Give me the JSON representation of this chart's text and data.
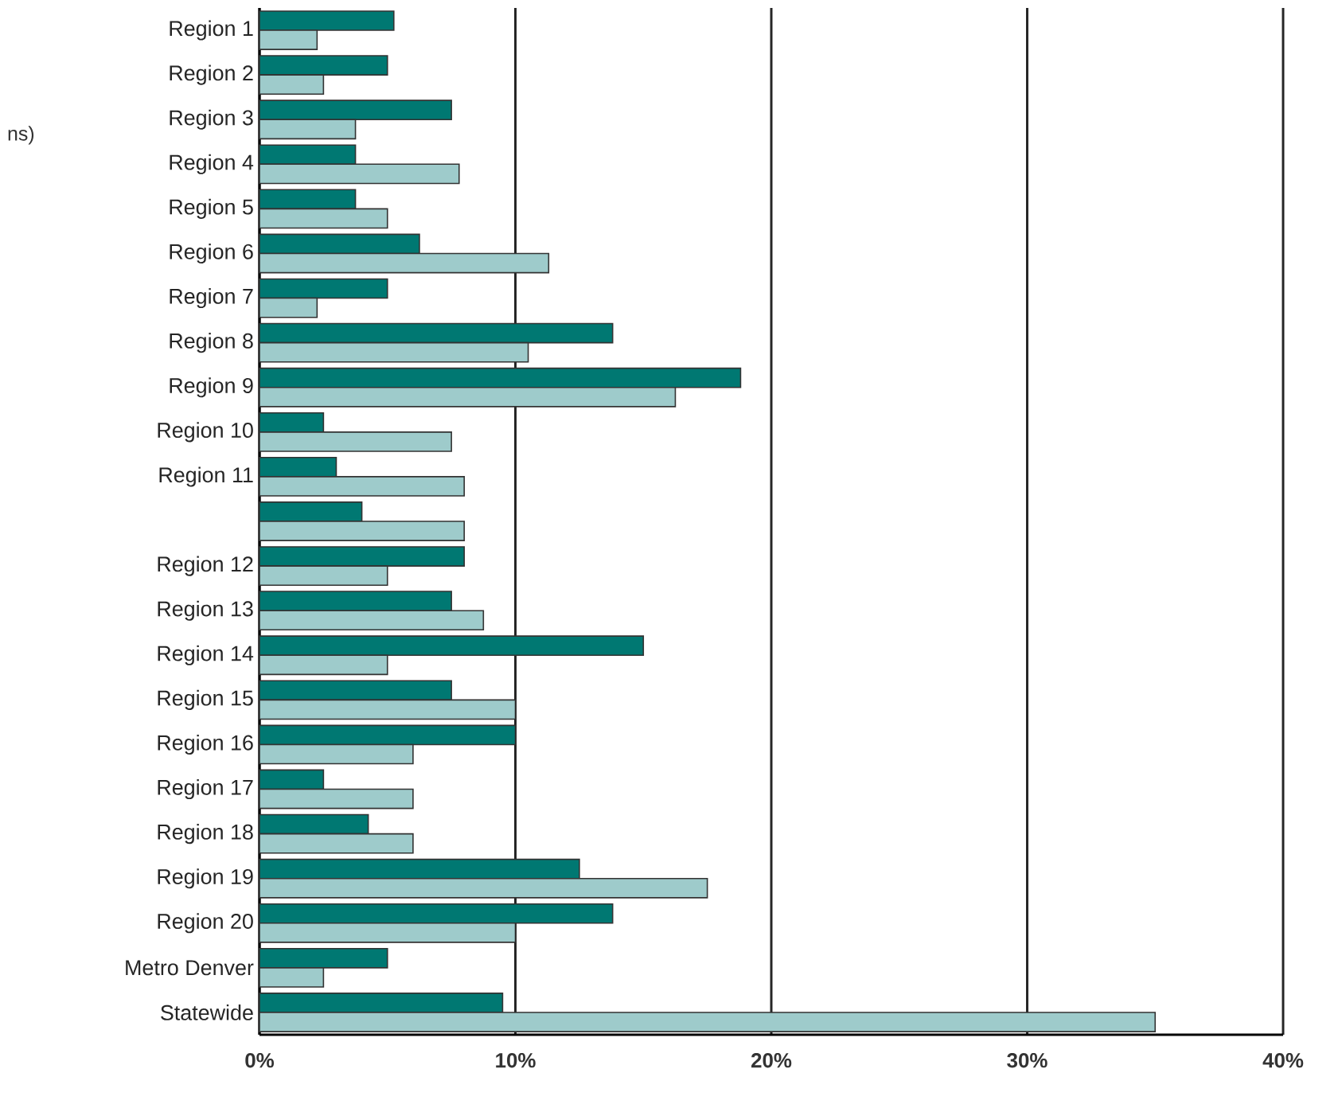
{
  "chart_data": {
    "type": "bar",
    "orientation": "horizontal",
    "categories": [
      "Region 1",
      "Region 2",
      "Region 3",
      "Region 4",
      "Region 5",
      "Region 6",
      "Region 7",
      "Region 8",
      "Region 9",
      "Region 10",
      "Region 11",
      null,
      "Region 12",
      "Region 13",
      "Region 14",
      "Region 15",
      "Region 16",
      "Region 17",
      "Region 18",
      "Region 19",
      "Region 20",
      "Metro Denver",
      "Statewide"
    ],
    "series": [
      {
        "color": "#007872",
        "values": [
          5.25,
          5,
          7.5,
          3.75,
          3.75,
          6.25,
          5,
          13.8,
          18.8,
          2.5,
          3,
          4,
          8,
          7.5,
          15,
          7.5,
          10,
          2.5,
          4.25,
          12.5,
          13.8,
          5,
          9.5
        ]
      },
      {
        "color": "#9ecbcb",
        "values": [
          2.25,
          2.5,
          3.75,
          7.8,
          5,
          11.3,
          2.25,
          10.5,
          16.25,
          7.5,
          8,
          8,
          5,
          8.75,
          5,
          10,
          6,
          6,
          6,
          17.5,
          10,
          2.5,
          35
        ]
      }
    ],
    "xlim": [
      0,
      40
    ],
    "xticks": [
      {
        "value": 0,
        "label": "0%"
      },
      {
        "value": 10,
        "label": "10%"
      },
      {
        "value": 20,
        "label": "20%"
      },
      {
        "value": 30,
        "label": "30%"
      },
      {
        "value": 40,
        "label": "40%"
      }
    ],
    "grid": "x",
    "annotations": [
      "ns)"
    ]
  }
}
